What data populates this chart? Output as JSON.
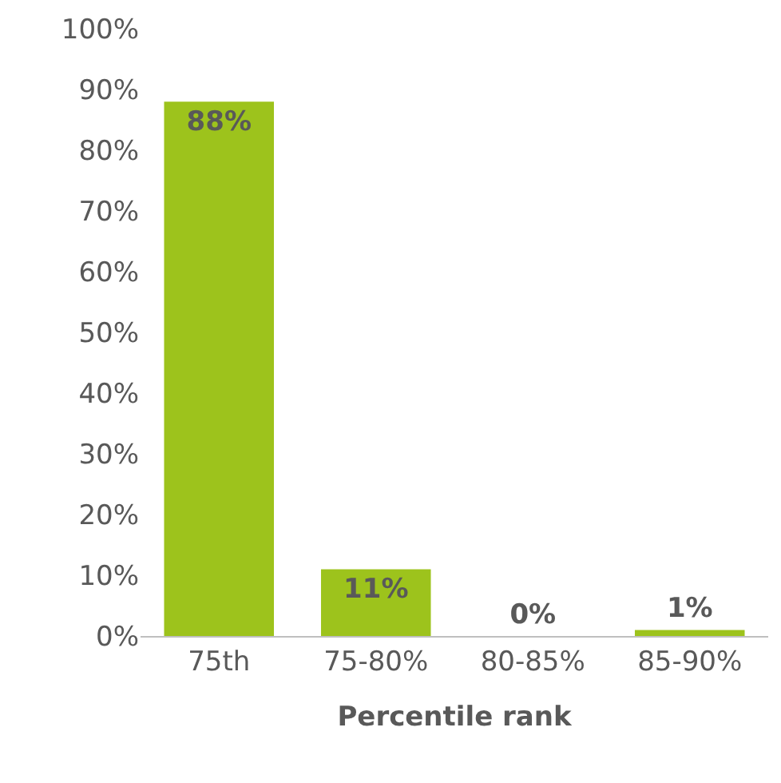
{
  "chart_data": {
    "type": "bar",
    "xlabel": "Percentile rank",
    "categories": [
      "75th",
      "75-80%",
      "80-85%",
      "85-90%"
    ],
    "values": [
      88,
      11,
      0,
      1
    ],
    "value_labels": [
      "88%",
      "11%",
      "0%",
      "1%"
    ],
    "color": "#9dc31c",
    "ylim": [
      0,
      100
    ],
    "yticks": [
      {
        "value": 0,
        "label": "0%"
      },
      {
        "value": 10,
        "label": "10%"
      },
      {
        "value": 20,
        "label": "20%"
      },
      {
        "value": 30,
        "label": "30%"
      },
      {
        "value": 40,
        "label": "40%"
      },
      {
        "value": 50,
        "label": "50%"
      },
      {
        "value": 60,
        "label": "60%"
      },
      {
        "value": 70,
        "label": "70%"
      },
      {
        "value": 80,
        "label": "80%"
      },
      {
        "value": 90,
        "label": "90%"
      },
      {
        "value": 100,
        "label": "100%"
      }
    ],
    "legend": false
  }
}
